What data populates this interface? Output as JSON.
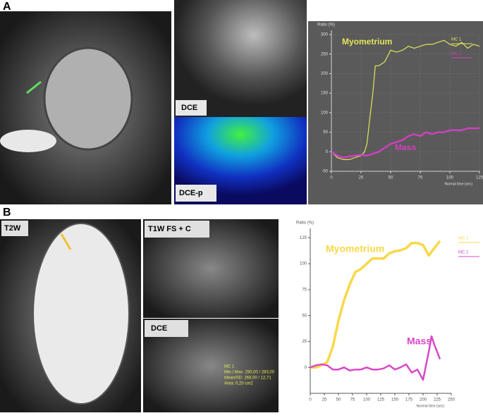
{
  "figure": {
    "panels": [
      "A",
      "B"
    ],
    "image_labels": [
      "DCE",
      "DCE-p",
      "T2W",
      "T1W FS + C",
      "DCE"
    ],
    "roi_text": [
      "MC 1",
      "Min / Max: 250,00 / 283,00",
      "Mean/SD: 268,00 / 12,71",
      "Area: 0,20 cm2"
    ]
  },
  "chart_data": [
    {
      "type": "line",
      "background": "#5a5a5a",
      "axis_color": "#e0e0e0",
      "grid": true,
      "ylabel": "Ratio (%)",
      "xlabel": "Normal time (sec)",
      "legend": [
        "MC 1",
        "MC 2"
      ],
      "xlim": [
        0,
        125
      ],
      "xticks": [
        0,
        25,
        50,
        75,
        100,
        125
      ],
      "ylim": [
        -50,
        300
      ],
      "yticks": [
        -50,
        0,
        50,
        100,
        150,
        200,
        250,
        300
      ],
      "series": [
        {
          "name": "Myometrium",
          "color": "#e4e45a",
          "width": 1.2,
          "x": [
            0,
            5,
            10,
            15,
            20,
            25,
            28,
            30,
            33,
            35,
            37,
            40,
            45,
            50,
            55,
            60,
            65,
            70,
            75,
            80,
            85,
            90,
            95,
            100,
            105,
            110,
            115,
            120,
            125
          ],
          "values": [
            0,
            -15,
            -20,
            -20,
            -15,
            -10,
            0,
            20,
            100,
            150,
            220,
            220,
            230,
            260,
            255,
            260,
            270,
            265,
            270,
            275,
            275,
            280,
            285,
            275,
            270,
            280,
            265,
            275,
            270
          ]
        },
        {
          "name": "Mass",
          "color": "#d040c0",
          "width": 2.5,
          "x": [
            0,
            5,
            10,
            15,
            20,
            25,
            30,
            35,
            40,
            45,
            50,
            55,
            60,
            65,
            70,
            75,
            80,
            85,
            90,
            95,
            100,
            105,
            110,
            115,
            125
          ],
          "values": [
            0,
            -10,
            -15,
            -12,
            -10,
            -8,
            -10,
            -5,
            0,
            10,
            20,
            25,
            30,
            40,
            45,
            40,
            50,
            45,
            50,
            50,
            55,
            55,
            55,
            60,
            60
          ]
        }
      ]
    },
    {
      "type": "line",
      "background": "#ffffff",
      "axis_color": "#555555",
      "grid": false,
      "ylabel": "Ratio (%)",
      "xlabel": "Normal time (sec)",
      "legend": [
        "MC 1",
        "MC 2"
      ],
      "xlim": [
        0,
        250
      ],
      "xticks": [
        0,
        25,
        50,
        75,
        100,
        125,
        150,
        175,
        200,
        225,
        250
      ],
      "ylim": [
        -25,
        130
      ],
      "yticks": [
        0,
        25,
        50,
        75,
        100,
        125
      ],
      "series": [
        {
          "name": "Myometrium",
          "color": "#f8d848",
          "width": 3.5,
          "x": [
            0,
            10,
            20,
            30,
            40,
            50,
            60,
            70,
            80,
            90,
            100,
            110,
            120,
            130,
            140,
            150,
            160,
            170,
            180,
            190,
            200,
            210,
            220,
            230
          ],
          "values": [
            0,
            0,
            2,
            5,
            20,
            45,
            65,
            80,
            92,
            95,
            100,
            105,
            105,
            105,
            110,
            112,
            113,
            115,
            120,
            120,
            118,
            108,
            115,
            122
          ]
        },
        {
          "name": "Mass",
          "color": "#d848c8",
          "width": 2.5,
          "x": [
            0,
            10,
            20,
            30,
            40,
            50,
            60,
            70,
            80,
            90,
            100,
            110,
            120,
            130,
            140,
            150,
            160,
            170,
            180,
            190,
            200,
            210,
            215,
            220,
            225,
            230
          ],
          "values": [
            0,
            2,
            3,
            2,
            -2,
            -2,
            0,
            -3,
            -2,
            -2,
            0,
            -2,
            -2,
            -1,
            2,
            -2,
            0,
            3,
            -5,
            -2,
            -12,
            15,
            30,
            22,
            15,
            8
          ]
        }
      ]
    }
  ]
}
